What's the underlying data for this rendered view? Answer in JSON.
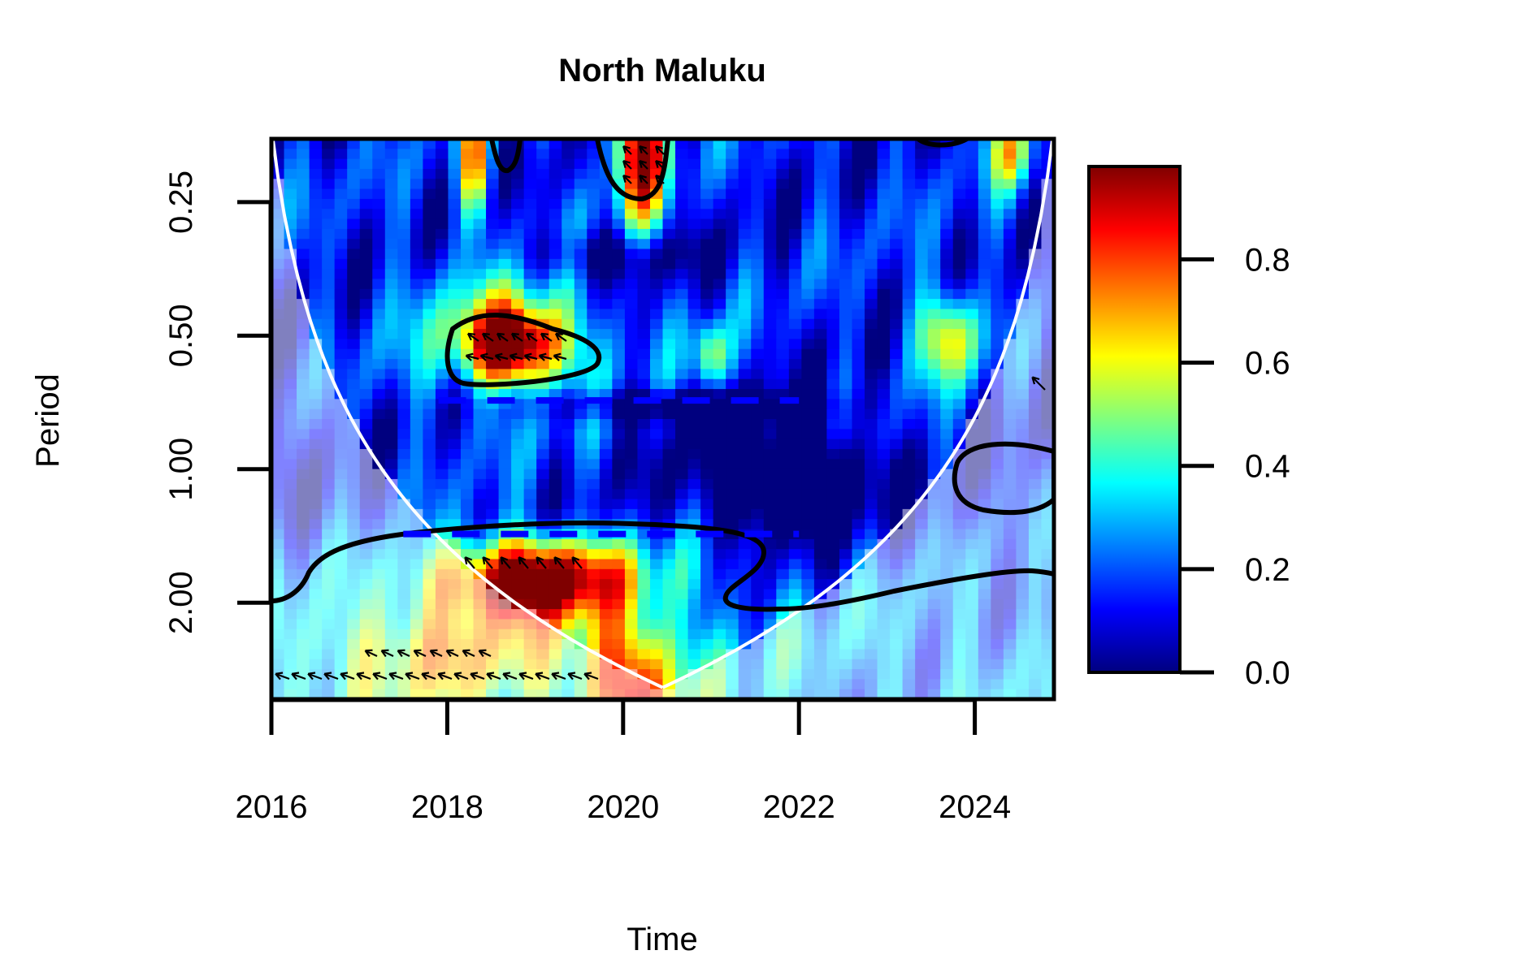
{
  "chart_data": {
    "type": "heatmap",
    "title": "North Maluku",
    "xlabel": "Time",
    "ylabel": "Period",
    "x_ticks": [
      2016,
      2018,
      2020,
      2022,
      2024
    ],
    "x_tick_labels": [
      "2016",
      "2018",
      "2020",
      "2022",
      "2024"
    ],
    "xlim": [
      2016,
      2024.9
    ],
    "y_scale": "log2",
    "y_ticks": [
      0.25,
      0.5,
      1.0,
      2.0
    ],
    "y_tick_labels": [
      "0.25",
      "0.50",
      "1.00",
      "2.00"
    ],
    "ylim": [
      0.18,
      3.3
    ],
    "y_reversed": true,
    "colorbar": {
      "range": [
        0,
        0.98
      ],
      "ticks": [
        0.0,
        0.2,
        0.4,
        0.6,
        0.8
      ],
      "tick_labels": [
        "0.0",
        "0.2",
        "0.4",
        "0.6",
        "0.8"
      ],
      "palette": [
        "#00007f",
        "#0000ff",
        "#007fff",
        "#00ffff",
        "#7fff7f",
        "#ffff00",
        "#ff7f00",
        "#ff0000",
        "#7f0000"
      ]
    },
    "significant_regions": [
      {
        "name": "",
        "x_center": 2018.75,
        "period_center": 0.52
      },
      {
        "name": "",
        "x_center": 2020.2,
        "period_center": 0.2
      },
      {
        "name": "",
        "x_center": 2018.9,
        "period_center": 1.75
      },
      {
        "name": "",
        "x_center": 2024.4,
        "period_center": 1.05
      }
    ],
    "ridge_lines": [
      {
        "period": 0.7,
        "x_range": [
          2017.9,
          2022
        ]
      },
      {
        "period": 1.4,
        "x_range": [
          2017.5,
          2022
        ]
      }
    ]
  }
}
